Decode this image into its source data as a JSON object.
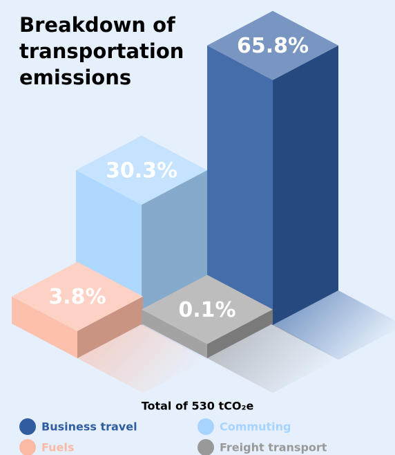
{
  "chart_data": {
    "type": "bar3d",
    "title": [
      "Breakdown of",
      "transportation",
      "emissions"
    ],
    "categories": [
      "Business travel",
      "Commuting",
      "Freight transport",
      "Fuels"
    ],
    "values": [
      65.8,
      30.3,
      0.1,
      3.8
    ],
    "value_labels": [
      "65.8%",
      "30.3%",
      "0.1%",
      "3.8%"
    ],
    "colors": [
      "#2f5da0",
      "#a6d4ff",
      "#999999",
      "#fcb9a4"
    ],
    "total_label": "Total of 530 tCO₂e",
    "legend": true
  }
}
